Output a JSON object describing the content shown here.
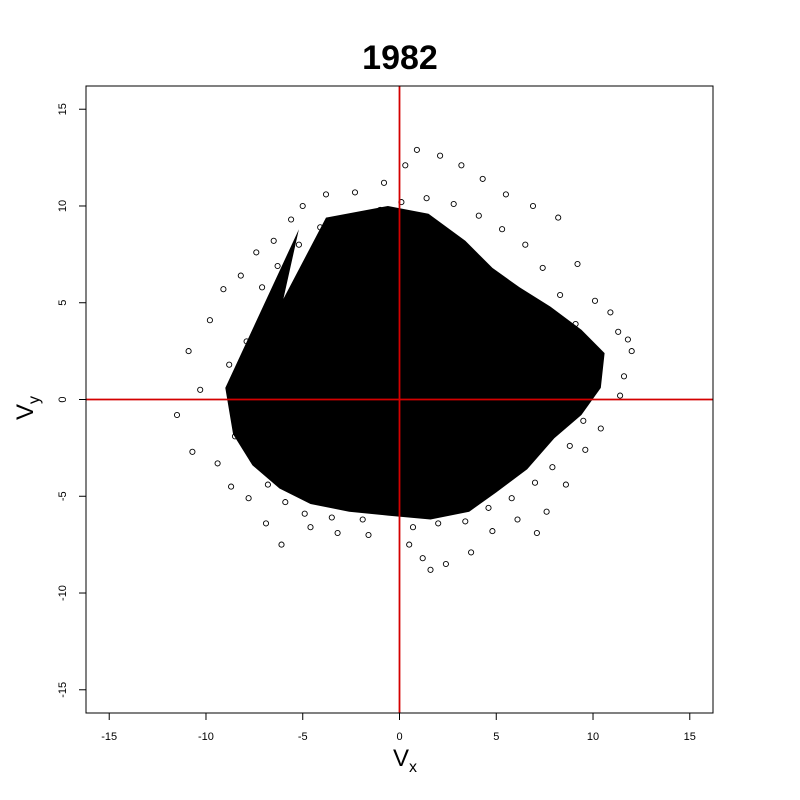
{
  "chart_data": {
    "type": "scatter",
    "title": "1982",
    "xlabel": {
      "main": "V",
      "sub": "x"
    },
    "ylabel": {
      "main": "V",
      "sub": "y"
    },
    "xlim": [
      -16.2,
      16.2
    ],
    "ylim": [
      -16.2,
      16.2
    ],
    "x_ticks": [
      -15,
      -10,
      -5,
      0,
      5,
      10,
      15
    ],
    "y_ticks": [
      -15,
      -10,
      -5,
      0,
      5,
      10,
      15
    ],
    "x_tick_labels": [
      "-15",
      "-10",
      "-5",
      "0",
      "5",
      "10",
      "15"
    ],
    "y_tick_labels": [
      "-15",
      "-10",
      "-5",
      "0",
      "5",
      "10",
      "15"
    ],
    "reference_lines": {
      "x": 0,
      "y": 0,
      "color": "#d40000"
    },
    "marker": "open-circle",
    "point_color": "#000000",
    "grid": false,
    "legend": "none",
    "points": [
      [
        -11.5,
        -0.8
      ],
      [
        -10.9,
        2.5
      ],
      [
        -10.7,
        -2.7
      ],
      [
        -10.3,
        0.5
      ],
      [
        -9.8,
        4.1
      ],
      [
        -9.4,
        -3.3
      ],
      [
        -9.1,
        5.7
      ],
      [
        -8.7,
        -4.5
      ],
      [
        -8.2,
        6.4
      ],
      [
        -7.8,
        -5.1
      ],
      [
        -7.4,
        7.6
      ],
      [
        -6.9,
        -6.4
      ],
      [
        -6.5,
        8.2
      ],
      [
        -6.1,
        -7.5
      ],
      [
        -5.6,
        9.3
      ],
      [
        -5.0,
        10.0
      ],
      [
        -4.6,
        -6.6
      ],
      [
        -3.8,
        10.6
      ],
      [
        -3.2,
        -6.9
      ],
      [
        -2.3,
        10.7
      ],
      [
        -1.6,
        -7.0
      ],
      [
        -0.8,
        11.2
      ],
      [
        0.3,
        12.1
      ],
      [
        0.5,
        -7.5
      ],
      [
        0.9,
        12.9
      ],
      [
        1.2,
        -8.2
      ],
      [
        1.6,
        -8.8
      ],
      [
        2.1,
        12.6
      ],
      [
        2.4,
        -8.5
      ],
      [
        3.2,
        12.1
      ],
      [
        3.7,
        -7.9
      ],
      [
        4.3,
        11.4
      ],
      [
        4.8,
        -6.8
      ],
      [
        5.5,
        10.6
      ],
      [
        6.1,
        -6.2
      ],
      [
        6.9,
        10.0
      ],
      [
        7.1,
        -6.9
      ],
      [
        7.6,
        -5.8
      ],
      [
        8.2,
        9.4
      ],
      [
        8.6,
        -4.4
      ],
      [
        9.2,
        7.0
      ],
      [
        9.6,
        -2.6
      ],
      [
        10.1,
        5.1
      ],
      [
        10.4,
        -1.5
      ],
      [
        10.9,
        4.5
      ],
      [
        11.3,
        3.5
      ],
      [
        11.6,
        1.2
      ],
      [
        11.8,
        3.1
      ],
      [
        12.0,
        2.5
      ],
      [
        11.4,
        0.2
      ],
      [
        -8.8,
        1.8
      ],
      [
        -8.5,
        -1.9
      ],
      [
        -7.9,
        3.0
      ],
      [
        -7.6,
        -3.1
      ],
      [
        -7.1,
        5.8
      ],
      [
        -6.8,
        -4.4
      ],
      [
        -6.3,
        6.9
      ],
      [
        -5.9,
        -5.3
      ],
      [
        -5.2,
        8.0
      ],
      [
        -4.9,
        -5.9
      ],
      [
        -4.1,
        8.9
      ],
      [
        -3.5,
        -6.1
      ],
      [
        -2.7,
        9.4
      ],
      [
        -1.9,
        -6.2
      ],
      [
        -1.0,
        9.8
      ],
      [
        0.1,
        10.2
      ],
      [
        0.7,
        -6.6
      ],
      [
        1.4,
        10.4
      ],
      [
        2.0,
        -6.4
      ],
      [
        2.8,
        10.1
      ],
      [
        3.4,
        -6.3
      ],
      [
        4.1,
        9.5
      ],
      [
        4.6,
        -5.6
      ],
      [
        5.3,
        8.8
      ],
      [
        5.8,
        -5.1
      ],
      [
        6.5,
        8.0
      ],
      [
        7.0,
        -4.3
      ],
      [
        7.4,
        6.8
      ],
      [
        7.9,
        -3.5
      ],
      [
        8.3,
        5.4
      ],
      [
        8.8,
        -2.4
      ],
      [
        9.1,
        3.9
      ],
      [
        9.5,
        -1.1
      ],
      [
        9.9,
        2.7
      ],
      [
        10.2,
        1.4
      ]
    ]
  }
}
